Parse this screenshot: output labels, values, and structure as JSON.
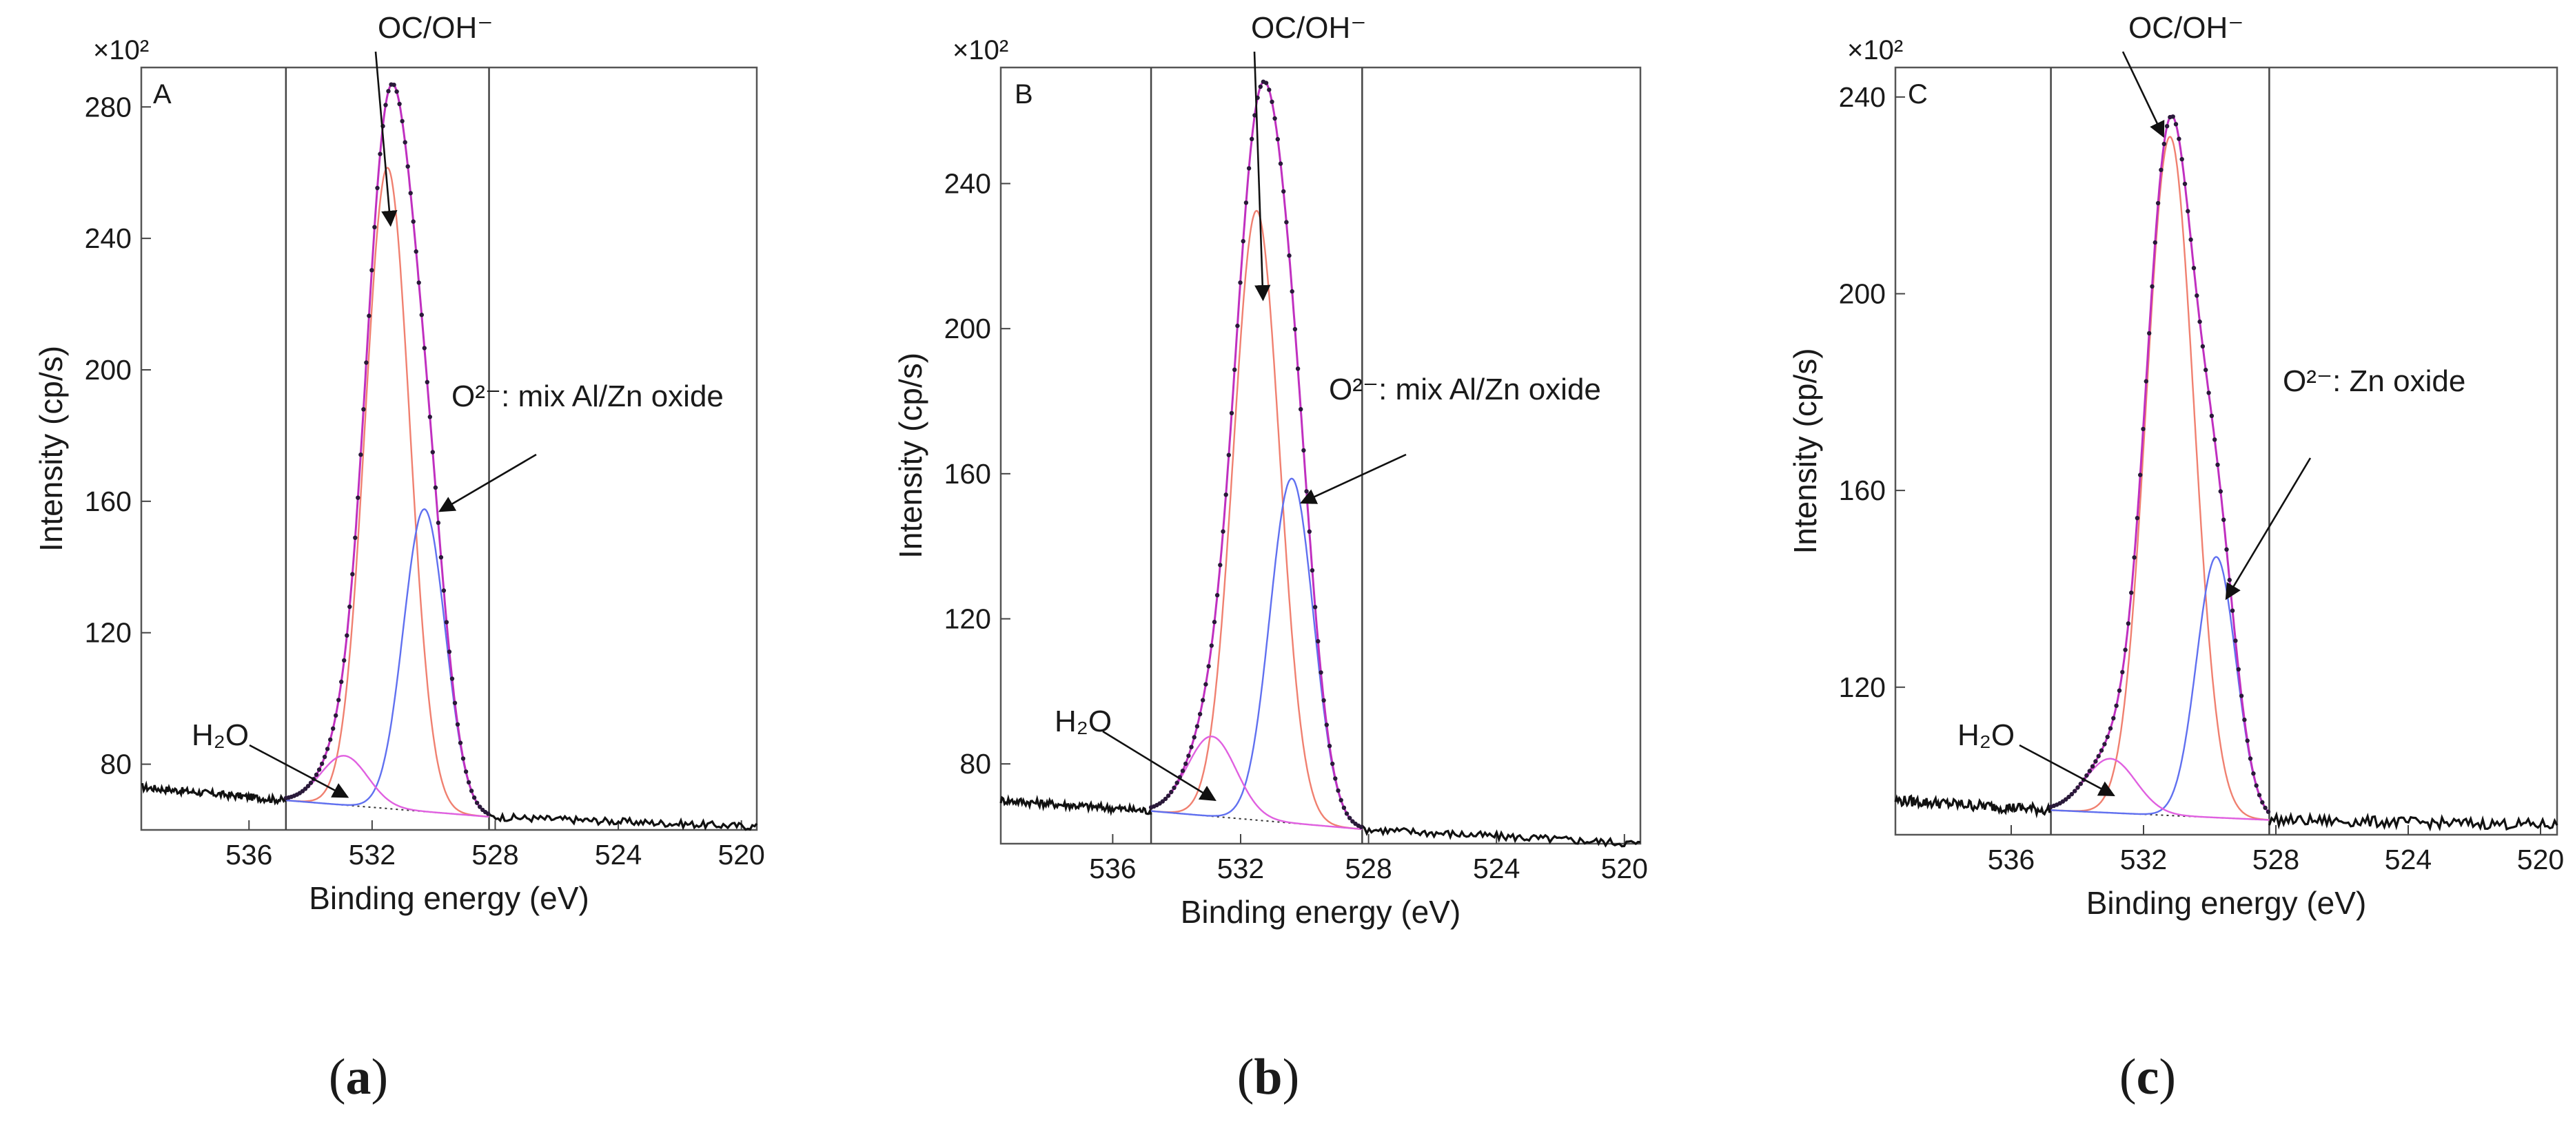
{
  "figure": {
    "captions": [
      "(a)",
      "(b)",
      "(c)"
    ],
    "caption_letters": [
      "a",
      "b",
      "c"
    ]
  },
  "colors": {
    "data_points": "#2a1a3a",
    "envelope": "#c030c0",
    "oc_oh_peak": "#f08070",
    "oxide_peak": "#6070f0",
    "h2o_peak": "#e060e0",
    "background": "#333333",
    "raw_trace": "#111111",
    "frame": "#555555"
  },
  "chart_data": [
    {
      "type": "line",
      "panel_label": "A",
      "caption": "(a)",
      "xlabel": "Binding energy (eV)",
      "ylabel": "Intensity (cp/s)",
      "y_multiplier": "×10²",
      "x_reversed": true,
      "xlim": [
        539.5,
        519.5
      ],
      "ylim": [
        60,
        292
      ],
      "xticks": [
        536,
        532,
        528,
        524,
        520
      ],
      "yticks": [
        80,
        120,
        160,
        200,
        240,
        280
      ],
      "fit_window": [
        534.8,
        528.2
      ],
      "background": {
        "hi_x": 534.8,
        "hi_y": 69,
        "lo_x": 528.2,
        "lo_y": 64
      },
      "raw_edges": {
        "left_start_y": 73,
        "right_end_y": 61
      },
      "components": [
        {
          "name": "OC/OH⁻",
          "center": 531.5,
          "height": 195,
          "fwhm": 1.7,
          "color_key": "oc_oh_peak"
        },
        {
          "name": "O²⁻: mix Al/Zn oxide",
          "center": 530.3,
          "height": 92,
          "fwhm": 1.6,
          "color_key": "oxide_peak"
        },
        {
          "name": "H₂O",
          "center": 532.9,
          "height": 15,
          "fwhm": 1.8,
          "color_key": "h2o_peak"
        }
      ],
      "annotations": [
        {
          "text": "OC/OH⁻",
          "target": [
            531.4,
            244
          ]
        },
        {
          "text": "O²⁻: mix Al/Zn oxide",
          "target": [
            529.8,
            157
          ]
        },
        {
          "text": "H₂O",
          "target": [
            532.8,
            70
          ]
        }
      ]
    },
    {
      "type": "line",
      "panel_label": "B",
      "caption": "(b)",
      "xlabel": "Binding energy (eV)",
      "ylabel": "Intensity (cp/s)",
      "y_multiplier": "×10²",
      "x_reversed": true,
      "xlim": [
        539.5,
        519.5
      ],
      "ylim": [
        58,
        272
      ],
      "xticks": [
        536,
        532,
        528,
        524,
        520
      ],
      "yticks": [
        80,
        120,
        160,
        200,
        240
      ],
      "fit_window": [
        534.8,
        528.2
      ],
      "background": {
        "hi_x": 534.8,
        "hi_y": 67,
        "lo_x": 528.2,
        "lo_y": 62
      },
      "raw_edges": {
        "left_start_y": 70,
        "right_end_y": 58
      },
      "components": [
        {
          "name": "OC/OH⁻",
          "center": 531.5,
          "height": 168,
          "fwhm": 1.7,
          "color_key": "oc_oh_peak"
        },
        {
          "name": "O²⁻: mix Al/Zn oxide",
          "center": 530.4,
          "height": 95,
          "fwhm": 1.6,
          "color_key": "oxide_peak"
        },
        {
          "name": "H₂O",
          "center": 532.9,
          "height": 22,
          "fwhm": 1.8,
          "color_key": "h2o_peak"
        }
      ],
      "annotations": [
        {
          "text": "OC/OH⁻",
          "target": [
            531.3,
            208
          ]
        },
        {
          "text": "O²⁻: mix Al/Zn oxide",
          "target": [
            530.1,
            152
          ]
        },
        {
          "text": "H₂O",
          "target": [
            532.8,
            70
          ]
        }
      ]
    },
    {
      "type": "line",
      "panel_label": "C",
      "caption": "(c)",
      "xlabel": "Binding energy (eV)",
      "ylabel": "Intensity (cp/s)",
      "y_multiplier": "×10²",
      "x_reversed": true,
      "xlim": [
        539.5,
        519.5
      ],
      "ylim": [
        90,
        246
      ],
      "xticks": [
        536,
        532,
        528,
        524,
        520
      ],
      "yticks": [
        120,
        160,
        200,
        240
      ],
      "fit_window": [
        534.8,
        528.2
      ],
      "background": {
        "hi_x": 534.8,
        "hi_y": 95,
        "lo_x": 528.2,
        "lo_y": 93
      },
      "raw_edges": {
        "left_start_y": 97,
        "right_end_y": 92
      },
      "components": [
        {
          "name": "OC/OH⁻",
          "center": 531.2,
          "height": 138,
          "fwhm": 1.7,
          "color_key": "oc_oh_peak"
        },
        {
          "name": "O²⁻: Zn oxide",
          "center": 529.8,
          "height": 53,
          "fwhm": 1.4,
          "color_key": "oxide_peak"
        },
        {
          "name": "H₂O",
          "center": 533.0,
          "height": 11,
          "fwhm": 1.8,
          "color_key": "h2o_peak"
        }
      ],
      "annotations": [
        {
          "text": "OC/OH⁻",
          "target": [
            531.4,
            232
          ]
        },
        {
          "text": "O²⁻: Zn oxide",
          "target": [
            529.5,
            138
          ]
        },
        {
          "text": "H₂O",
          "target": [
            532.9,
            98
          ]
        }
      ]
    }
  ]
}
